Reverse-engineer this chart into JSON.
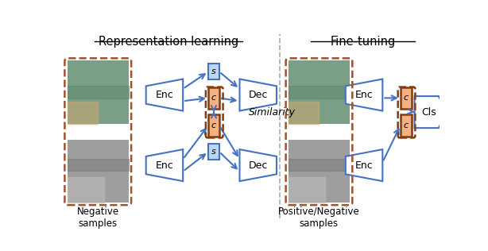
{
  "title_left": "Representation learning",
  "title_right": "Fine-tuning",
  "label_neg": "Negative\nsamples",
  "label_pos": "Positive/Negative\nsamples",
  "label_similarity": "Similarity",
  "enc_text": "Enc",
  "dec_text": "Dec",
  "cls_text": "Cls",
  "s_text": "s",
  "c_text": "c",
  "blue": "#4472C4",
  "blue_fill": "#BDD7EE",
  "orange_fill": "#F4B183",
  "orange_border": "#843C0C",
  "bg": "#FFFFFF",
  "dashed_orange": "#A0522D",
  "divider_color": "#AAAAAA"
}
